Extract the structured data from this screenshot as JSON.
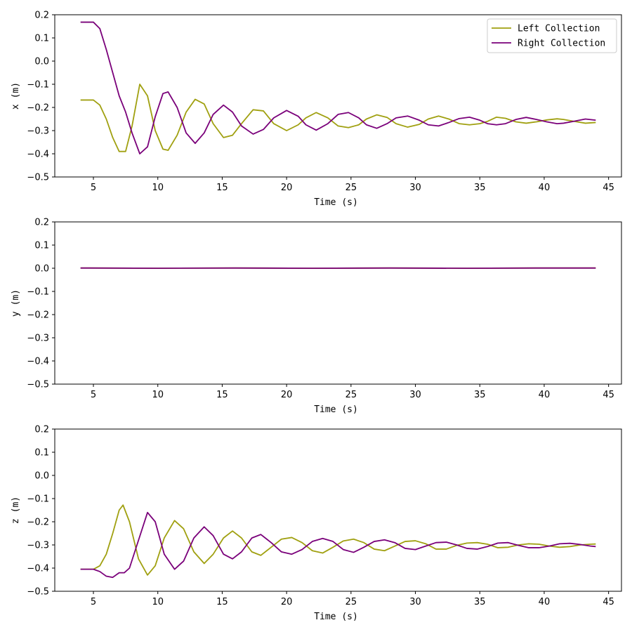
{
  "chart_data": [
    {
      "type": "line",
      "xlabel": "Time (s)",
      "ylabel": "x (m)",
      "xlim": [
        2,
        46
      ],
      "ylim": [
        -0.5,
        0.2
      ],
      "xticks": [
        5,
        10,
        15,
        20,
        25,
        30,
        35,
        40,
        45
      ],
      "yticks": [
        -0.5,
        -0.4,
        -0.3,
        -0.2,
        -0.1,
        0.0,
        0.1,
        0.2
      ],
      "grid": false,
      "legend": {
        "position": "top-right",
        "entries": [
          "Left Collection",
          "Right Collection"
        ]
      },
      "series": [
        {
          "name": "Left Collection",
          "color": "#a0a010",
          "x": [
            4,
            5,
            5.5,
            6,
            6.5,
            7,
            7.5,
            8,
            8.6,
            9.2,
            9.8,
            10.4,
            10.8,
            11.5,
            12.2,
            12.9,
            13.6,
            14.3,
            15.1,
            15.8,
            16.5,
            17.4,
            18.2,
            19.0,
            20.0,
            20.9,
            21.5,
            22.3,
            23.2,
            24.0,
            24.8,
            25.6,
            26.2,
            27.0,
            27.8,
            28.5,
            29.4,
            30.3,
            31.0,
            31.8,
            32.6,
            33.4,
            34.2,
            35.0,
            35.6,
            36.3,
            37.0,
            37.8,
            38.6,
            39.4,
            40.2,
            41.0,
            41.5,
            42.3,
            43.2,
            44.0
          ],
          "y": [
            -0.168,
            -0.168,
            -0.19,
            -0.25,
            -0.33,
            -0.39,
            -0.39,
            -0.28,
            -0.1,
            -0.15,
            -0.3,
            -0.38,
            -0.385,
            -0.32,
            -0.22,
            -0.165,
            -0.185,
            -0.27,
            -0.33,
            -0.32,
            -0.27,
            -0.21,
            -0.215,
            -0.27,
            -0.3,
            -0.275,
            -0.245,
            -0.222,
            -0.245,
            -0.28,
            -0.287,
            -0.275,
            -0.25,
            -0.232,
            -0.243,
            -0.27,
            -0.285,
            -0.273,
            -0.25,
            -0.237,
            -0.25,
            -0.27,
            -0.275,
            -0.27,
            -0.26,
            -0.242,
            -0.247,
            -0.262,
            -0.268,
            -0.262,
            -0.254,
            -0.249,
            -0.252,
            -0.26,
            -0.268,
            -0.265
          ]
        },
        {
          "name": "Right Collection",
          "color": "#7a007a",
          "x": [
            4,
            5,
            5.5,
            6,
            6.5,
            7,
            7.5,
            8,
            8.6,
            9.2,
            9.8,
            10.4,
            10.8,
            11.5,
            12.2,
            12.9,
            13.6,
            14.3,
            15.1,
            15.8,
            16.5,
            17.4,
            18.2,
            19.0,
            20.0,
            20.9,
            21.5,
            22.3,
            23.2,
            24.0,
            24.8,
            25.6,
            26.2,
            27.0,
            27.8,
            28.5,
            29.4,
            30.3,
            31.0,
            31.8,
            32.6,
            33.4,
            34.2,
            35.0,
            35.6,
            36.3,
            37.0,
            37.8,
            38.6,
            39.4,
            40.2,
            41.0,
            41.5,
            42.3,
            43.2,
            44.0
          ],
          "y": [
            0.168,
            0.168,
            0.14,
            0.05,
            -0.05,
            -0.15,
            -0.22,
            -0.31,
            -0.4,
            -0.37,
            -0.24,
            -0.14,
            -0.133,
            -0.2,
            -0.31,
            -0.355,
            -0.31,
            -0.23,
            -0.19,
            -0.22,
            -0.28,
            -0.315,
            -0.295,
            -0.245,
            -0.213,
            -0.238,
            -0.275,
            -0.298,
            -0.27,
            -0.23,
            -0.222,
            -0.245,
            -0.275,
            -0.29,
            -0.27,
            -0.245,
            -0.237,
            -0.255,
            -0.275,
            -0.28,
            -0.265,
            -0.248,
            -0.242,
            -0.255,
            -0.27,
            -0.275,
            -0.27,
            -0.252,
            -0.243,
            -0.252,
            -0.262,
            -0.27,
            -0.268,
            -0.26,
            -0.25,
            -0.255
          ]
        }
      ]
    },
    {
      "type": "line",
      "xlabel": "Time (s)",
      "ylabel": "y (m)",
      "xlim": [
        2,
        46
      ],
      "ylim": [
        -0.5,
        0.2
      ],
      "xticks": [
        5,
        10,
        15,
        20,
        25,
        30,
        35,
        40,
        45
      ],
      "yticks": [
        -0.5,
        -0.4,
        -0.3,
        -0.2,
        -0.1,
        0.0,
        0.1,
        0.2
      ],
      "grid": false,
      "series": [
        {
          "name": "Left Collection",
          "color": "#a0a010",
          "x": [
            4,
            10,
            16,
            22,
            28,
            34,
            40,
            44
          ],
          "y": [
            0.001,
            0.0,
            0.001,
            0.0,
            0.001,
            0.0,
            0.001,
            0.001
          ]
        },
        {
          "name": "Right Collection",
          "color": "#7a007a",
          "x": [
            4,
            10,
            16,
            22,
            28,
            34,
            40,
            44
          ],
          "y": [
            0.001,
            0.0,
            0.001,
            0.0,
            0.001,
            0.0,
            0.001,
            0.001
          ]
        }
      ]
    },
    {
      "type": "line",
      "xlabel": "Time (s)",
      "ylabel": "z (m)",
      "xlim": [
        2,
        46
      ],
      "ylim": [
        -0.5,
        0.2
      ],
      "xticks": [
        5,
        10,
        15,
        20,
        25,
        30,
        35,
        40,
        45
      ],
      "yticks": [
        -0.5,
        -0.4,
        -0.3,
        -0.2,
        -0.1,
        0.0,
        0.1,
        0.2
      ],
      "grid": false,
      "series": [
        {
          "name": "Left Collection",
          "color": "#a0a010",
          "x": [
            4,
            5,
            5.5,
            6,
            6.5,
            7,
            7.3,
            7.8,
            8.5,
            9.2,
            9.8,
            10.5,
            11.3,
            12.0,
            12.8,
            13.6,
            14.3,
            15.1,
            15.8,
            16.5,
            17.3,
            18.0,
            18.8,
            19.6,
            20.4,
            21.2,
            22.0,
            22.8,
            23.6,
            24.4,
            25.2,
            26.0,
            26.8,
            27.6,
            28.4,
            29.2,
            30.0,
            30.8,
            31.6,
            32.4,
            33.2,
            34.0,
            34.8,
            35.6,
            36.4,
            37.2,
            38.0,
            38.8,
            39.6,
            40.4,
            41.2,
            42.0,
            42.8,
            43.6,
            44.0
          ],
          "y": [
            -0.405,
            -0.405,
            -0.39,
            -0.34,
            -0.25,
            -0.15,
            -0.128,
            -0.2,
            -0.36,
            -0.43,
            -0.39,
            -0.27,
            -0.195,
            -0.23,
            -0.33,
            -0.38,
            -0.34,
            -0.27,
            -0.24,
            -0.27,
            -0.33,
            -0.345,
            -0.31,
            -0.275,
            -0.268,
            -0.29,
            -0.325,
            -0.335,
            -0.31,
            -0.283,
            -0.275,
            -0.29,
            -0.318,
            -0.325,
            -0.305,
            -0.285,
            -0.282,
            -0.295,
            -0.318,
            -0.318,
            -0.302,
            -0.292,
            -0.29,
            -0.297,
            -0.312,
            -0.31,
            -0.3,
            -0.295,
            -0.297,
            -0.305,
            -0.31,
            -0.307,
            -0.3,
            -0.297,
            -0.296
          ]
        },
        {
          "name": "Right Collection",
          "color": "#7a007a",
          "x": [
            4,
            5,
            5.5,
            6,
            6.5,
            7,
            7.4,
            7.8,
            8.5,
            9.2,
            9.8,
            10.5,
            11.3,
            12.0,
            12.8,
            13.6,
            14.3,
            15.1,
            15.8,
            16.5,
            17.3,
            18.0,
            18.8,
            19.6,
            20.4,
            21.2,
            22.0,
            22.8,
            23.6,
            24.4,
            25.2,
            26.0,
            26.8,
            27.6,
            28.4,
            29.2,
            30.0,
            30.8,
            31.6,
            32.4,
            33.2,
            34.0,
            34.8,
            35.6,
            36.4,
            37.2,
            38.0,
            38.8,
            39.6,
            40.4,
            41.2,
            42.0,
            42.8,
            43.6,
            44.0
          ],
          "y": [
            -0.405,
            -0.405,
            -0.415,
            -0.435,
            -0.44,
            -0.42,
            -0.42,
            -0.4,
            -0.28,
            -0.16,
            -0.2,
            -0.34,
            -0.405,
            -0.37,
            -0.27,
            -0.222,
            -0.26,
            -0.34,
            -0.36,
            -0.33,
            -0.27,
            -0.255,
            -0.29,
            -0.33,
            -0.34,
            -0.32,
            -0.285,
            -0.272,
            -0.285,
            -0.32,
            -0.332,
            -0.31,
            -0.285,
            -0.278,
            -0.29,
            -0.315,
            -0.32,
            -0.305,
            -0.29,
            -0.288,
            -0.3,
            -0.315,
            -0.318,
            -0.307,
            -0.292,
            -0.29,
            -0.302,
            -0.312,
            -0.312,
            -0.305,
            -0.295,
            -0.293,
            -0.298,
            -0.305,
            -0.307
          ]
        }
      ]
    }
  ]
}
